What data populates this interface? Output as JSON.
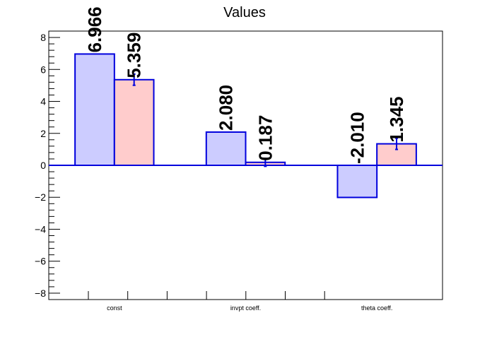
{
  "chart_data": {
    "type": "bar",
    "title": "Values",
    "categories": [
      "const",
      "invpt coeff.",
      "theta coeff."
    ],
    "ylim": [
      -8.4,
      8.4
    ],
    "y_ticks": [
      -8,
      -6,
      -4,
      -2,
      0,
      2,
      4,
      6,
      8
    ],
    "y_tick_labels": [
      "−8",
      "−6",
      "−4",
      "−2",
      "0",
      "2",
      "4",
      "6",
      "8"
    ],
    "grid": false,
    "legend": "none",
    "series": [
      {
        "values": [
          6.966,
          2.08,
          -2.01
        ],
        "labels": [
          "6.966",
          "2.080",
          "-2.010"
        ],
        "errors": [
          0,
          0,
          0
        ],
        "fill": "#ccccff",
        "stroke": "#0000dd"
      },
      {
        "values": [
          5.359,
          0.187,
          1.345
        ],
        "labels": [
          "5.359",
          "0.187",
          "1.345"
        ],
        "errors": [
          0.35,
          0.25,
          0.35
        ],
        "fill": "#ffcccc",
        "stroke": "#0000dd"
      }
    ],
    "zero_line_color": "#0000dd"
  }
}
